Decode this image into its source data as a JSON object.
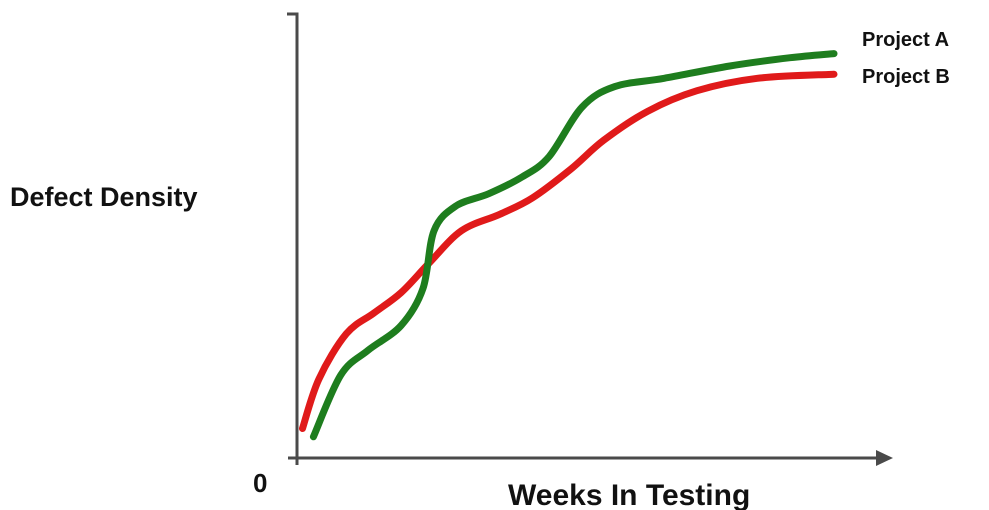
{
  "chart_data": {
    "type": "line",
    "xlabel": "Weeks In Testing",
    "ylabel": "Defect Density",
    "origin_label": "0",
    "xlim": [
      0,
      100
    ],
    "ylim": [
      0,
      100
    ],
    "grid": false,
    "legend_placement": "top-right",
    "series": [
      {
        "name": "Project A",
        "color": "#1e7d1e",
        "points": [
          [
            3,
            2
          ],
          [
            8,
            17
          ],
          [
            13,
            23
          ],
          [
            19,
            29
          ],
          [
            23,
            38
          ],
          [
            25,
            52
          ],
          [
            29,
            58
          ],
          [
            35,
            61
          ],
          [
            41,
            65
          ],
          [
            46,
            70
          ],
          [
            52,
            82
          ],
          [
            58,
            87
          ],
          [
            67,
            89
          ],
          [
            79,
            92
          ],
          [
            90,
            94
          ],
          [
            98,
            95
          ]
        ]
      },
      {
        "name": "Project B",
        "color": "#e01a1a",
        "points": [
          [
            1,
            4
          ],
          [
            4,
            16
          ],
          [
            9,
            27
          ],
          [
            14,
            32
          ],
          [
            19,
            37
          ],
          [
            24,
            44
          ],
          [
            30,
            52
          ],
          [
            37,
            56
          ],
          [
            43,
            60
          ],
          [
            50,
            67
          ],
          [
            56,
            74
          ],
          [
            64,
            81
          ],
          [
            73,
            86
          ],
          [
            84,
            89
          ],
          [
            98,
            90
          ]
        ]
      }
    ]
  }
}
